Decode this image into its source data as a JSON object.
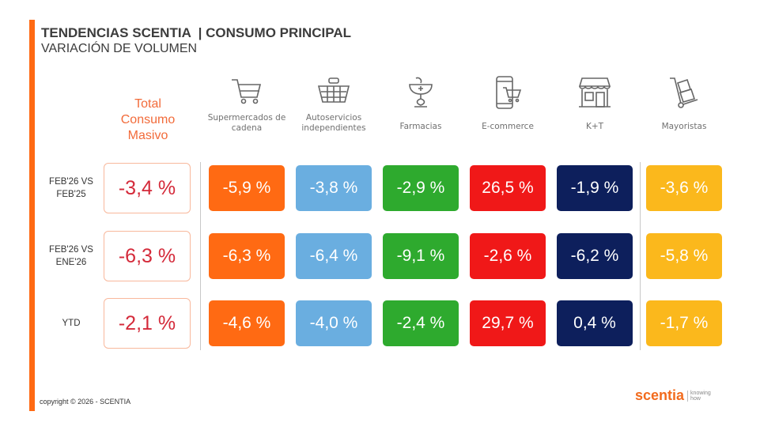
{
  "header": {
    "title": "TENDENCIAS SCENTIA  | CONSUMO PRINCIPAL",
    "subtitle": "VARIACIÓN DE VOLUMEN"
  },
  "total": {
    "label_lines": [
      "Total",
      "Consumo",
      "Masivo"
    ],
    "color": "#d42a3a"
  },
  "channels": [
    {
      "label": "Supermercados de cadena",
      "icon": "shopping-cart-icon",
      "color": "#ff6a13"
    },
    {
      "label": "Autoservicios independientes",
      "icon": "basket-icon",
      "color": "#6aaee0"
    },
    {
      "label": "Farmacias",
      "icon": "pharmacy-icon",
      "color": "#2eaa2e"
    },
    {
      "label": "E-commerce",
      "icon": "mobile-cart-icon",
      "color": "#f01818"
    },
    {
      "label": "K+T",
      "icon": "storefront-icon",
      "color": "#0d1f5c"
    },
    {
      "label": "Mayoristas",
      "icon": "hand-truck-icon",
      "color": "#fbb81c"
    }
  ],
  "rows": [
    {
      "label_lines": [
        "FEB'26 VS",
        "FEB'25"
      ],
      "total": "-3,4 %",
      "values": [
        "-5,9 %",
        "-3,8 %",
        "-2,9 %",
        "26,5 %",
        "-1,9 %",
        "-3,6 %"
      ]
    },
    {
      "label_lines": [
        "FEB'26 VS",
        "ENE'26"
      ],
      "total": "-6,3 %",
      "values": [
        "-6,3 %",
        "-6,4 %",
        "-9,1 %",
        "-2,6 %",
        "-6,2 %",
        "-5,8 %"
      ]
    },
    {
      "label_lines": [
        "YTD",
        ""
      ],
      "total": "-2,1 %",
      "values": [
        "-4,6 %",
        "-4,0 %",
        "-2,4 %",
        "29,7 %",
        "0,4 %",
        "-1,7 %"
      ]
    }
  ],
  "footer": {
    "copyright": "copyright © 2026 - SCENTIA",
    "logo": "scentia",
    "logo_tagline": [
      "knowing",
      "how"
    ]
  },
  "accent_color": "#ff6a13"
}
